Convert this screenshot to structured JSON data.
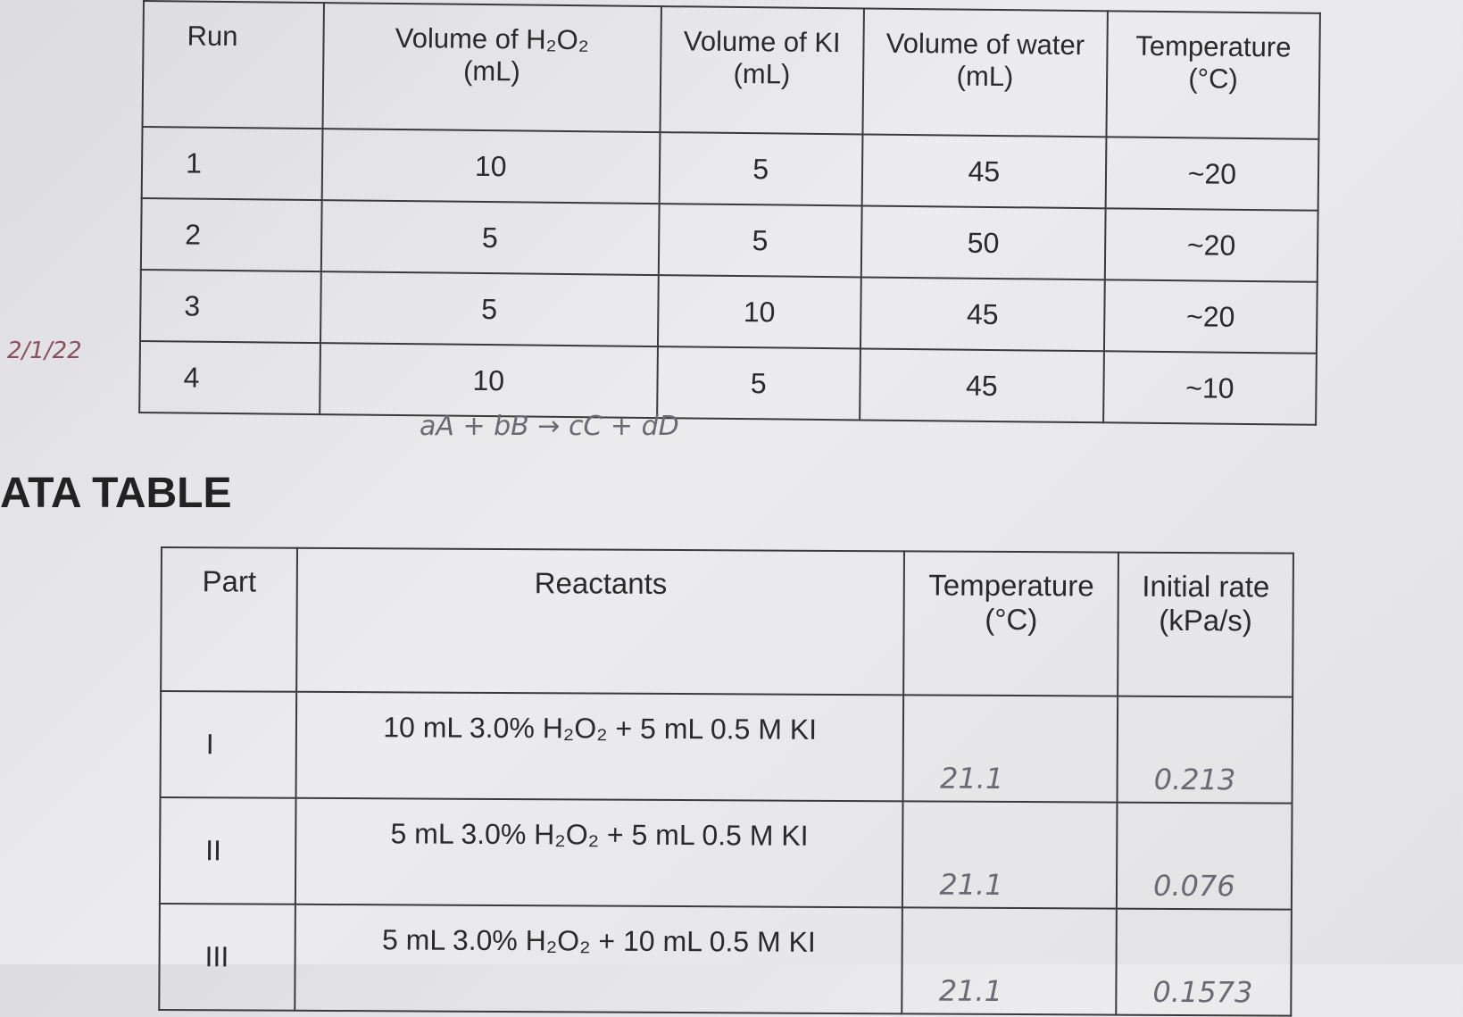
{
  "margin_note": "2/1/22",
  "table1": {
    "headers": [
      "Run",
      "Volume of H₂O₂\n(mL)",
      "Volume of KI\n(mL)",
      "Volume of water\n(mL)",
      "Temperature\n(°C)"
    ],
    "rows": [
      [
        "1",
        "10",
        "5",
        "45",
        "~20"
      ],
      [
        "2",
        "5",
        "5",
        "50",
        "~20"
      ],
      [
        "3",
        "5",
        "10",
        "45",
        "~20"
      ],
      [
        "4",
        "10",
        "5",
        "45",
        "~10"
      ]
    ]
  },
  "equation": "aA + bB → cC + dD",
  "section_title": "ATA TABLE",
  "table2": {
    "headers": [
      "Part",
      "Reactants",
      "Temperature\n(°C)",
      "Initial rate\n(kPa/s)"
    ],
    "rows": [
      [
        "I",
        "10 mL 3.0% H₂O₂ + 5 mL 0.5 M KI",
        "21.1",
        "0.213"
      ],
      [
        "II",
        "5 mL 3.0% H₂O₂ + 5 mL 0.5 M KI",
        "21.1",
        "0.076"
      ],
      [
        "III",
        "5 mL 3.0% H₂O₂ + 10 mL 0.5 M KI",
        "21.1",
        "0.1573"
      ]
    ]
  }
}
